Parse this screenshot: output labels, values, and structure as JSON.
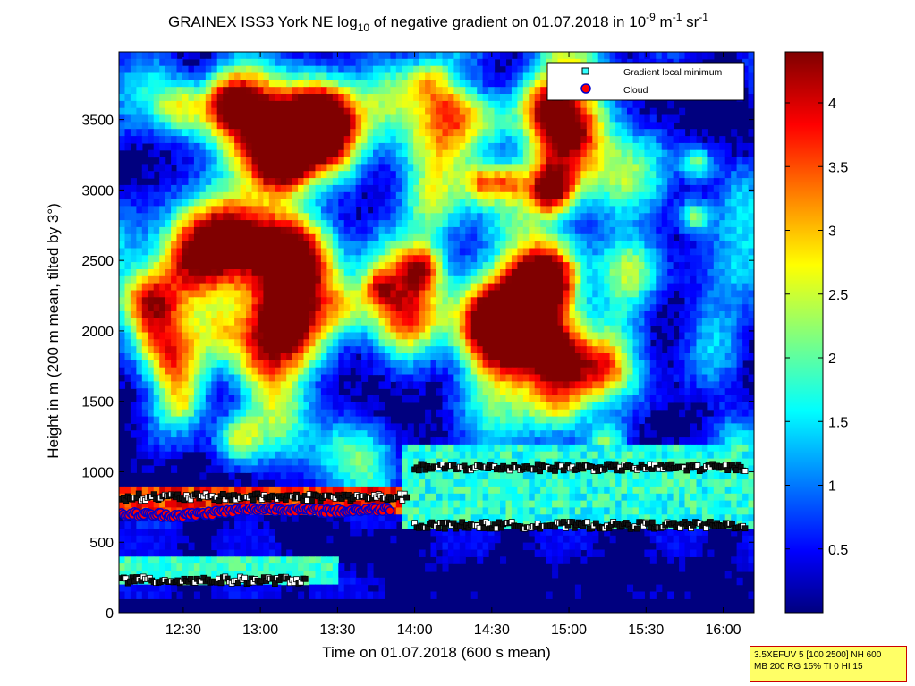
{
  "chart_data": {
    "type": "heatmap",
    "title": {
      "part1": "GRAINEX ISS3 York NE log",
      "sub1": "10",
      "part2": " of negative gradient on 01.07.2018 in 10",
      "sup1": "-9",
      "part3": " m",
      "sup2": "-1",
      "part4": " sr",
      "sup3": "-1"
    },
    "xlabel": "Time on 01.07.2018 (600 s mean)",
    "ylabel": "Height in m (200 m mean, tilted by 3°)",
    "xlim_hours": [
      12.083,
      16.2
    ],
    "ylim": [
      0,
      3980
    ],
    "x_ticks": [
      {
        "label": "12:30",
        "h": 12.5
      },
      {
        "label": "13:00",
        "h": 13.0
      },
      {
        "label": "13:30",
        "h": 13.5
      },
      {
        "label": "14:00",
        "h": 14.0
      },
      {
        "label": "14:30",
        "h": 14.5
      },
      {
        "label": "15:00",
        "h": 15.0
      },
      {
        "label": "15:30",
        "h": 15.5
      },
      {
        "label": "16:00",
        "h": 16.0
      }
    ],
    "y_ticks": [
      "0",
      "500",
      "1000",
      "1500",
      "2000",
      "2500",
      "3000",
      "3500"
    ],
    "colorbar": {
      "range": [
        0,
        4.4
      ],
      "ticks": [
        "0.5",
        "1",
        "1.5",
        "2",
        "2.5",
        "3",
        "3.5",
        "4"
      ],
      "colormap": "jet"
    },
    "legend": {
      "position": "top-right",
      "entries": [
        "Gradient local minimum",
        "Cloud"
      ]
    },
    "layers": {
      "boundary_layer_top_m": [
        {
          "h": 12.1,
          "y": 760
        },
        {
          "h": 12.5,
          "y": 730
        },
        {
          "h": 13.0,
          "y": 770
        },
        {
          "h": 13.5,
          "y": 760
        },
        {
          "h": 13.85,
          "y": 780
        }
      ],
      "cloud_base_m": [
        {
          "h": 12.1,
          "y": 700
        },
        {
          "h": 12.5,
          "y": 690
        },
        {
          "h": 13.0,
          "y": 740
        },
        {
          "h": 13.5,
          "y": 720
        },
        {
          "h": 13.85,
          "y": 740
        }
      ],
      "gradient_minima_tracks_m": [
        {
          "h0": 12.1,
          "h1": 13.95,
          "y": 820
        },
        {
          "h0": 14.0,
          "h1": 16.15,
          "y": 1030
        },
        {
          "h0": 14.0,
          "h1": 16.15,
          "y": 620
        },
        {
          "h0": 12.1,
          "h1": 13.3,
          "y": 230
        }
      ]
    },
    "grid": false
  },
  "annotation": {
    "line1": "3.5XEFUV 5 [100 2500] NH 600",
    "line2": "MB 200 RG 15% TI 0 HI 15"
  },
  "colors": {
    "background": "#00007f",
    "frame": "#000000",
    "minimum_marker": "#33ffff",
    "cloud_marker": "#ff0000"
  }
}
